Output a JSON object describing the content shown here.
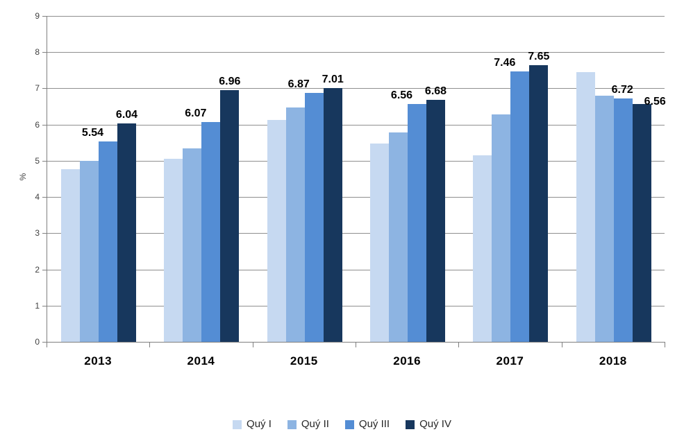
{
  "chart_data": {
    "type": "bar",
    "title": "",
    "ylabel": "%",
    "xlabel": "",
    "ylim": [
      0,
      9
    ],
    "yticks": [
      0,
      1,
      2,
      3,
      4,
      5,
      6,
      7,
      8,
      9
    ],
    "grid": true,
    "legend_position": "bottom",
    "categories": [
      "2013",
      "2014",
      "2015",
      "2016",
      "2017",
      "2018"
    ],
    "series": [
      {
        "name": "Quý I",
        "color": "#c6d9f1",
        "values": [
          4.76,
          5.06,
          6.12,
          5.48,
          5.15,
          7.45
        ]
      },
      {
        "name": "Quý II",
        "color": "#8db4e2",
        "values": [
          5.0,
          5.34,
          6.47,
          5.78,
          6.28,
          6.79
        ]
      },
      {
        "name": "Quý III",
        "color": "#548dd4",
        "values": [
          5.54,
          6.07,
          6.87,
          6.56,
          7.46,
          6.72
        ],
        "labels": [
          "5.54",
          "6.07",
          "6.87",
          "6.56",
          "7.46",
          "6.72"
        ]
      },
      {
        "name": "Quý IV",
        "color": "#17375d",
        "values": [
          6.04,
          6.96,
          7.01,
          6.68,
          7.65,
          6.56
        ],
        "labels": [
          "6.04",
          "6.96",
          "7.01",
          "6.68",
          "7.65",
          "6.56"
        ]
      }
    ]
  },
  "colors": {
    "background": "#ffffff",
    "gridline": "#8e8e8e",
    "axis": "#7f7f7f",
    "tick_text": "#3f3f3f",
    "label_text": "#000000",
    "legend_text": "#262626"
  }
}
